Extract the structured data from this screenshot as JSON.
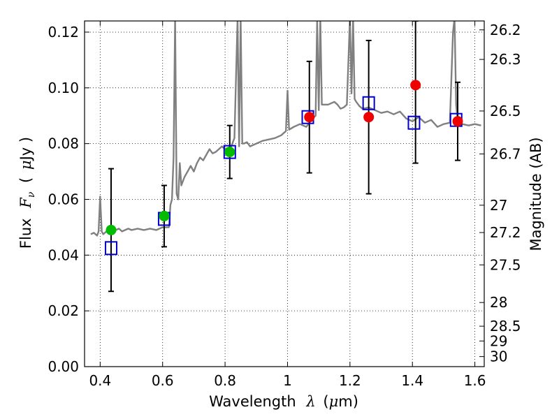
{
  "chart_data": {
    "type": "scatter",
    "title": "",
    "xlabel_text": "Wavelength",
    "xlabel_symbol": "λ",
    "xlabel_unit_open": "(",
    "xlabel_unit_mu": "μ",
    "xlabel_unit_rest": "m)",
    "ylabel_text": "Flux",
    "ylabel_symbol": "F",
    "ylabel_subscript": "ν",
    "ylabel_unit_open": "(",
    "ylabel_unit_mu": "μ",
    "ylabel_unit_rest": "Jy )",
    "y2label": "Magnitude (AB)",
    "xlim": [
      0.35,
      1.63
    ],
    "ylim": [
      0.0,
      0.124
    ],
    "grid": true,
    "x_ticks": [
      0.4,
      0.6,
      0.8,
      1.0,
      1.2,
      1.4,
      1.6
    ],
    "x_tick_labels": [
      "0.4",
      "0.6",
      "0.8",
      "1",
      "1.2",
      "1.4",
      "1.6"
    ],
    "y_ticks": [
      0.0,
      0.02,
      0.04,
      0.06,
      0.08,
      0.1,
      0.12
    ],
    "y_tick_labels": [
      "0.00",
      "0.02",
      "0.04",
      "0.06",
      "0.08",
      "0.10",
      "0.12"
    ],
    "y2_ticks": [
      {
        "label": "26.2",
        "flux": 0.1208
      },
      {
        "label": "26.3",
        "flux": 0.1102
      },
      {
        "label": "26.5",
        "flux": 0.0917
      },
      {
        "label": "26.7",
        "flux": 0.0763
      },
      {
        "label": "27",
        "flux": 0.0579
      },
      {
        "label": "27.2",
        "flux": 0.0481
      },
      {
        "label": "27.5",
        "flux": 0.0365
      },
      {
        "label": "28",
        "flux": 0.023
      },
      {
        "label": "28.5",
        "flux": 0.0145
      },
      {
        "label": "29",
        "flux": 0.0092
      },
      {
        "label": "30",
        "flux": 0.0036
      }
    ],
    "series": [
      {
        "name": "model spectrum",
        "style": "line",
        "color": "#808080",
        "x": [
          0.37,
          0.38,
          0.39,
          0.395,
          0.4,
          0.405,
          0.41,
          0.42,
          0.43,
          0.44,
          0.45,
          0.46,
          0.47,
          0.48,
          0.49,
          0.5,
          0.52,
          0.54,
          0.56,
          0.58,
          0.6,
          0.62,
          0.625,
          0.63,
          0.635,
          0.64,
          0.645,
          0.65,
          0.655,
          0.66,
          0.67,
          0.68,
          0.69,
          0.7,
          0.71,
          0.72,
          0.73,
          0.74,
          0.75,
          0.76,
          0.77,
          0.78,
          0.79,
          0.8,
          0.81,
          0.82,
          0.83,
          0.84,
          0.845,
          0.85,
          0.855,
          0.86,
          0.87,
          0.88,
          0.9,
          0.92,
          0.94,
          0.96,
          0.98,
          0.995,
          1.0,
          1.005,
          1.02,
          1.04,
          1.06,
          1.08,
          1.09,
          1.095,
          1.1,
          1.105,
          1.11,
          1.13,
          1.15,
          1.16,
          1.17,
          1.18,
          1.19,
          1.2,
          1.205,
          1.21,
          1.215,
          1.22,
          1.23,
          1.24,
          1.26,
          1.28,
          1.3,
          1.32,
          1.34,
          1.36,
          1.38,
          1.4,
          1.42,
          1.44,
          1.46,
          1.48,
          1.5,
          1.52,
          1.53,
          1.535,
          1.54,
          1.545,
          1.55,
          1.56,
          1.58,
          1.6,
          1.62
        ],
        "y": [
          0.0475,
          0.048,
          0.047,
          0.0485,
          0.061,
          0.0485,
          0.0475,
          0.0485,
          0.0495,
          0.0485,
          0.049,
          0.0495,
          0.0485,
          0.049,
          0.0495,
          0.049,
          0.0495,
          0.049,
          0.0495,
          0.049,
          0.05,
          0.05,
          0.058,
          0.06,
          0.075,
          0.125,
          0.062,
          0.06,
          0.073,
          0.065,
          0.068,
          0.07,
          0.072,
          0.07,
          0.073,
          0.075,
          0.074,
          0.076,
          0.078,
          0.0765,
          0.077,
          0.078,
          0.079,
          0.078,
          0.0785,
          0.079,
          0.082,
          0.125,
          0.079,
          0.125,
          0.08,
          0.08,
          0.0805,
          0.079,
          0.08,
          0.081,
          0.0815,
          0.082,
          0.083,
          0.0845,
          0.099,
          0.085,
          0.086,
          0.087,
          0.086,
          0.089,
          0.09,
          0.125,
          0.092,
          0.125,
          0.094,
          0.094,
          0.095,
          0.094,
          0.0925,
          0.093,
          0.094,
          0.125,
          0.098,
          0.125,
          0.096,
          0.095,
          0.0935,
          0.0925,
          0.093,
          0.092,
          0.091,
          0.0915,
          0.0905,
          0.0915,
          0.089,
          0.088,
          0.0895,
          0.0875,
          0.0885,
          0.086,
          0.087,
          0.0875,
          0.12,
          0.125,
          0.094,
          0.088,
          0.0875,
          0.087,
          0.0865,
          0.087,
          0.0865
        ]
      },
      {
        "name": "blue squares",
        "style": "open-square",
        "color": "#0000cc",
        "x": [
          0.435,
          0.605,
          0.815,
          1.065,
          1.26,
          1.405,
          1.54
        ],
        "y": [
          0.0425,
          0.053,
          0.077,
          0.0895,
          0.0945,
          0.0875,
          0.0885
        ]
      },
      {
        "name": "green points",
        "style": "filled-circle",
        "color": "#00bb00",
        "x": [
          0.435,
          0.605,
          0.815
        ],
        "y": [
          0.049,
          0.054,
          0.077
        ]
      },
      {
        "name": "red points",
        "style": "filled-circle",
        "color": "#ee0000",
        "x": [
          1.07,
          1.26,
          1.41,
          1.545
        ],
        "y": [
          0.0895,
          0.0895,
          0.101,
          0.088
        ]
      },
      {
        "name": "error bars",
        "style": "errorbar",
        "color": "#000000",
        "x": [
          0.435,
          0.605,
          0.815,
          1.07,
          1.26,
          1.41,
          1.545
        ],
        "y_low": [
          0.027,
          0.043,
          0.0675,
          0.0695,
          0.062,
          0.073,
          0.074
        ],
        "y_high": [
          0.071,
          0.065,
          0.0865,
          0.1095,
          0.117,
          0.125,
          0.102
        ]
      }
    ]
  }
}
